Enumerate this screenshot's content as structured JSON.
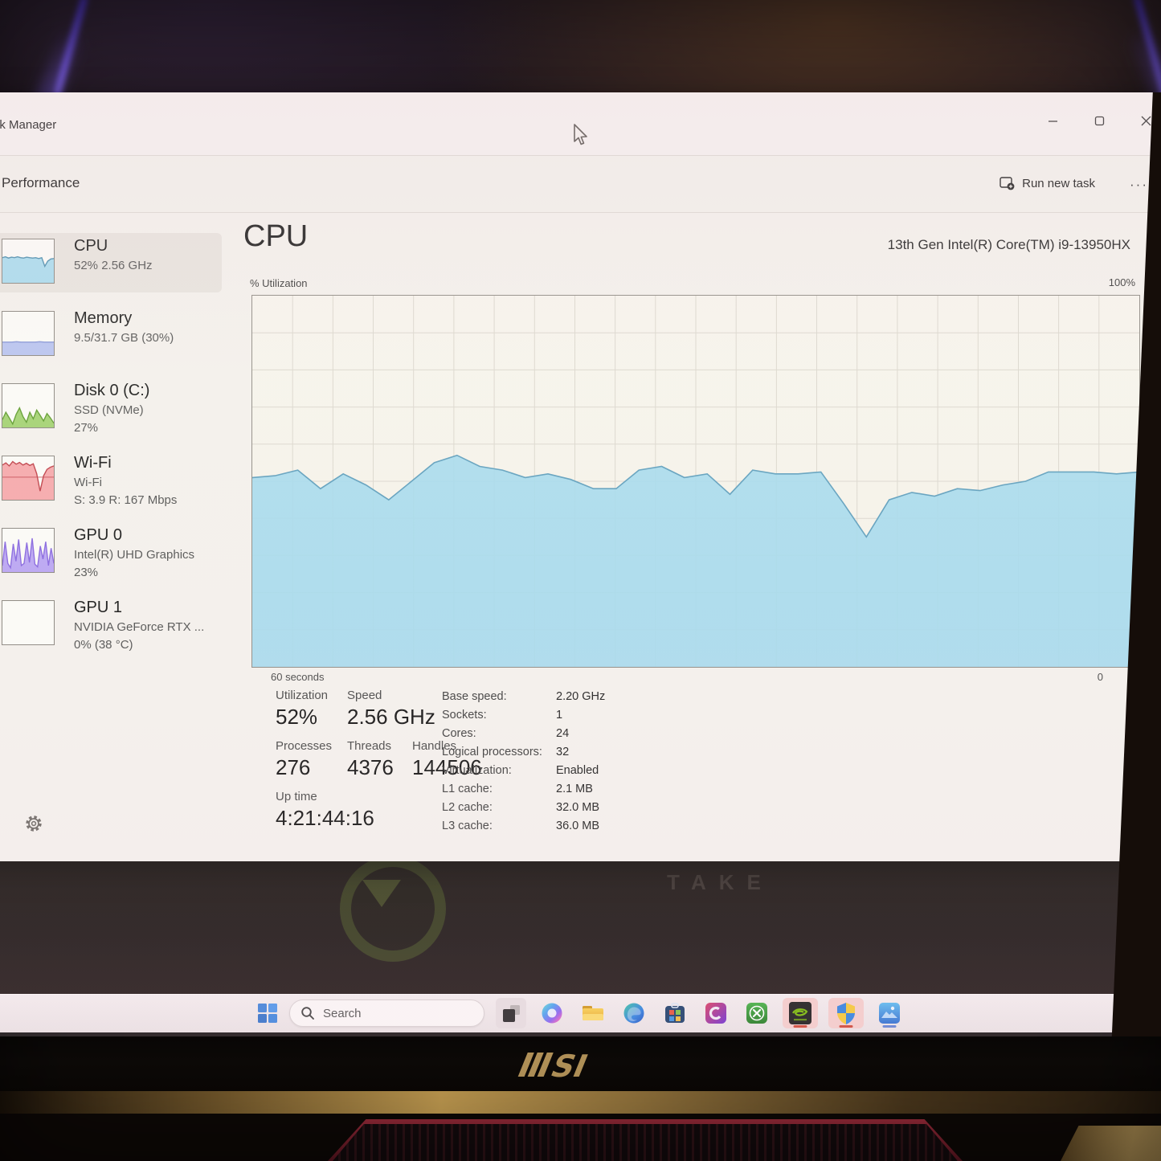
{
  "window": {
    "title": "Task Manager",
    "page_title": "Performance",
    "run_new_task_label": "Run new task",
    "more_label": "···"
  },
  "sidebar": {
    "items": [
      {
        "label": "CPU",
        "line1": "52%  2.56 GHz",
        "line2": "",
        "spark": {
          "values": [
            58,
            60,
            57,
            59,
            58,
            60,
            58,
            57,
            59,
            58,
            57,
            58,
            56,
            58,
            38,
            50,
            55,
            56
          ],
          "fill": "#a5daee",
          "line": "#4f90b0"
        }
      },
      {
        "label": "Memory",
        "line1": "9.5/31.7 GB (30%)",
        "line2": "",
        "spark": {
          "values": [
            30,
            30,
            30,
            31,
            30,
            30,
            30,
            30,
            31,
            30,
            30,
            30
          ],
          "fill": "#b4c0f0",
          "line": "#8595d8"
        }
      },
      {
        "label": "Disk 0 (C:)",
        "line1": "SSD (NVMe)",
        "line2": "27%",
        "spark": {
          "values": [
            18,
            35,
            22,
            8,
            30,
            45,
            25,
            12,
            35,
            20,
            40,
            28,
            15,
            32,
            22,
            10
          ],
          "fill": "#9ed06a",
          "line": "#5f9c2e"
        }
      },
      {
        "label": "Wi-Fi",
        "line1": "Wi-Fi",
        "line2": "S: 3.9 R: 167 Mbps",
        "spark": {
          "values": [
            80,
            85,
            78,
            88,
            82,
            86,
            80,
            84,
            79,
            83,
            60,
            20,
            55,
            70,
            75,
            78
          ],
          "fill": "#f5a3a8",
          "line": "#c03f48",
          "line2": 52
        }
      },
      {
        "label": "GPU 0",
        "line1": "Intel(R) UHD Graphics",
        "line2": "23%",
        "spark": {
          "values": [
            15,
            70,
            20,
            10,
            65,
            25,
            75,
            15,
            20,
            68,
            22,
            78,
            18,
            12,
            60,
            30,
            70,
            15,
            55,
            20
          ],
          "fill": "#b7a1f2",
          "line": "#8868e0"
        }
      },
      {
        "label": "GPU 1",
        "line1": "NVIDIA GeForce RTX ...",
        "line2": "0%  (38 °C)",
        "spark": {
          "values": [],
          "fill": "#ffffff",
          "line": "#cccccc"
        }
      }
    ]
  },
  "main": {
    "title": "CPU",
    "cpu_name": "13th Gen Intel(R) Core(TM) i9-13950HX",
    "stats": {
      "utilization": {
        "label": "Utilization",
        "value": "52%"
      },
      "speed": {
        "label": "Speed",
        "value": "2.56 GHz"
      },
      "processes": {
        "label": "Processes",
        "value": "276"
      },
      "threads": {
        "label": "Threads",
        "value": "4376"
      },
      "handles": {
        "label": "Handles",
        "value": "144506"
      },
      "uptime": {
        "label": "Up time",
        "value": "4:21:44:16"
      }
    },
    "specs": [
      {
        "label": "Base speed:",
        "value": "2.20 GHz"
      },
      {
        "label": "Sockets:",
        "value": "1"
      },
      {
        "label": "Cores:",
        "value": "24"
      },
      {
        "label": "Logical processors:",
        "value": "32"
      },
      {
        "label": "Virtualization:",
        "value": "Enabled"
      },
      {
        "label": "L1 cache:",
        "value": "2.1 MB"
      },
      {
        "label": "L2 cache:",
        "value": "32.0 MB"
      },
      {
        "label": "L3 cache:",
        "value": "36.0 MB"
      }
    ]
  },
  "chart_data": {
    "type": "area",
    "title": "CPU % Utilization over 60 seconds",
    "y_axis_label": "% Utilization",
    "y_max_label": "100%",
    "x_left_label": "60 seconds",
    "x_right_label": "0",
    "ylim": [
      0,
      100
    ],
    "x_span_seconds": 60,
    "values_percent": [
      51,
      51.5,
      53,
      48,
      52,
      49,
      45,
      50,
      55,
      57,
      54,
      53,
      51,
      52,
      50.5,
      48,
      48,
      53,
      54,
      51,
      52,
      46.5,
      53,
      52,
      52,
      52.5,
      44,
      35,
      45,
      47,
      46,
      48,
      47.5,
      49,
      50,
      52.5,
      52.5,
      52.5,
      52,
      52.5
    ],
    "grid": {
      "columns": 22,
      "rows": 10,
      "visible": true
    },
    "colors": {
      "fill": "#a5daee",
      "line": "#5f9fbe",
      "grid": "#dcd8cf",
      "border": "#8f8b85"
    }
  },
  "taskbar": {
    "search_label": "Search",
    "icons": [
      "windows-start",
      "search",
      "task-view",
      "copilot",
      "file-explorer",
      "edge",
      "microsoft-store",
      "purple-ring-app",
      "xbox",
      "nvidia",
      "windows-security",
      "photos"
    ],
    "attention_underline_color": "#cc4434",
    "active_underline_color": "#5f80d4"
  },
  "desktop": {
    "wallpaper_text": "TAKE"
  },
  "bezel": {
    "brand": "MSI",
    "logo_si": "SI",
    "logo_color": "#bf9d5f"
  }
}
